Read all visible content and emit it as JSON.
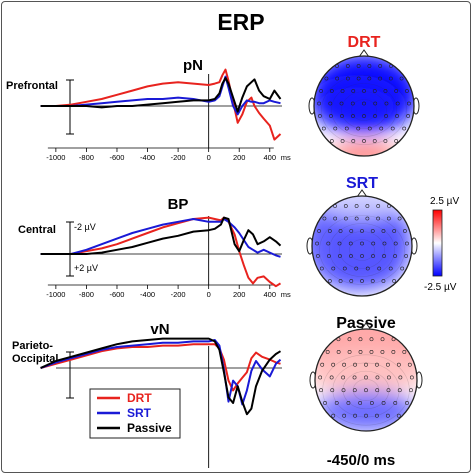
{
  "figure": {
    "title": "ERP",
    "time_window": "-450/0 ms",
    "colorbar": {
      "max_label": "2.5 µV",
      "min_label": "-2.5 µV",
      "colors": [
        "#0000ff",
        "#ffffff",
        "#ff0000"
      ]
    }
  },
  "legend": [
    {
      "label": "DRT",
      "color": "#e8231e"
    },
    {
      "label": "SRT",
      "color": "#1a1ad6"
    },
    {
      "label": "Passive",
      "color": "#000000"
    }
  ],
  "chart_data": [
    {
      "type": "line",
      "title": "pN",
      "ylabel": "Prefrontal",
      "x_unit": "ms",
      "x_ticks": [
        "-1000",
        "-800",
        "-600",
        "-400",
        "-200",
        "0",
        "200",
        "400"
      ],
      "xlim": [
        -1130,
        480
      ],
      "ylim": [
        -3.3,
        3.3
      ],
      "series": [
        {
          "name": "DRT",
          "color": "#e8231e",
          "x": [
            -1100,
            -1000,
            -900,
            -800,
            -700,
            -600,
            -500,
            -400,
            -300,
            -200,
            -100,
            0,
            40,
            70,
            90,
            110,
            130,
            160,
            190,
            220,
            250,
            280,
            300,
            330,
            360,
            400,
            430,
            470
          ],
          "y": [
            0,
            0,
            0.1,
            0.3,
            0.5,
            0.8,
            1.1,
            1.4,
            1.6,
            1.7,
            1.6,
            1.5,
            1.6,
            1.7,
            2.2,
            2.6,
            1.8,
            0.3,
            -1.2,
            -0.6,
            0.3,
            0.6,
            0,
            -0.5,
            -0.9,
            -1.4,
            -2.4,
            -2.0
          ]
        },
        {
          "name": "SRT",
          "color": "#1a1ad6",
          "x": [
            -1100,
            -1000,
            -900,
            -800,
            -700,
            -600,
            -500,
            -400,
            -300,
            -200,
            -100,
            0,
            40,
            70,
            90,
            110,
            130,
            160,
            190,
            220,
            250,
            280,
            300,
            330,
            360,
            400,
            430,
            470
          ],
          "y": [
            0,
            0,
            0,
            0.1,
            0.2,
            0.3,
            0.4,
            0.5,
            0.5,
            0.6,
            0.5,
            0.3,
            0.4,
            0.7,
            1.4,
            2.1,
            1.3,
            0,
            -0.6,
            0,
            0.4,
            0.3,
            0.3,
            0.2,
            0.2,
            0.4,
            0.3,
            0.2
          ]
        },
        {
          "name": "Passive",
          "color": "#000000",
          "x": [
            -1100,
            -1000,
            -900,
            -800,
            -700,
            -600,
            -500,
            -400,
            -300,
            -200,
            -100,
            0,
            40,
            70,
            90,
            110,
            130,
            160,
            190,
            220,
            250,
            280,
            300,
            330,
            360,
            400,
            430,
            470
          ],
          "y": [
            0,
            0,
            0,
            0,
            -0.1,
            0,
            0,
            0.1,
            0.2,
            0.3,
            0.4,
            0.4,
            0.5,
            0.9,
            1.6,
            2.0,
            1.6,
            0.6,
            -0.4,
            0.6,
            1.4,
            1.7,
            1.9,
            1.1,
            0.7,
            0.5,
            1.1,
            0.5
          ]
        }
      ]
    },
    {
      "type": "line",
      "title": "BP",
      "ylabel": "Central",
      "y_ticks": [
        "-2 µV",
        "+2 µV"
      ],
      "x_unit": "ms",
      "x_ticks": [
        "-1000",
        "-800",
        "-600",
        "-400",
        "-200",
        "0",
        "200",
        "400"
      ],
      "xlim": [
        -1130,
        480
      ],
      "ylim": [
        -3.3,
        3.3
      ],
      "series": [
        {
          "name": "DRT",
          "color": "#e8231e",
          "x": [
            -1100,
            -1000,
            -900,
            -800,
            -700,
            -600,
            -500,
            -400,
            -300,
            -200,
            -100,
            0,
            40,
            80,
            100,
            130,
            170,
            200,
            230,
            260,
            290,
            320,
            360,
            400,
            440,
            470
          ],
          "y": [
            0,
            0,
            0,
            0.2,
            0.4,
            0.7,
            1.1,
            1.5,
            1.9,
            2.2,
            2.5,
            2.6,
            2.5,
            2.4,
            2.6,
            2.3,
            1.4,
            0.2,
            -0.8,
            -1.7,
            -2.1,
            -1.7,
            -1.6,
            -2.0,
            -2.3,
            -2.1
          ]
        },
        {
          "name": "SRT",
          "color": "#1a1ad6",
          "x": [
            -1100,
            -1000,
            -900,
            -800,
            -700,
            -600,
            -500,
            -400,
            -300,
            -200,
            -100,
            0,
            40,
            80,
            100,
            130,
            170,
            200,
            230,
            260,
            290,
            320,
            360,
            400,
            440,
            470
          ],
          "y": [
            0,
            0,
            0,
            0.3,
            0.7,
            1.1,
            1.5,
            1.8,
            2.1,
            2.3,
            2.5,
            2.3,
            2.3,
            2.3,
            2.5,
            2.3,
            1.9,
            1.5,
            1.0,
            0.5,
            0.3,
            0.1,
            0.3,
            0.1,
            -0.1,
            -0.2
          ]
        },
        {
          "name": "Passive",
          "color": "#000000",
          "x": [
            -1100,
            -1000,
            -900,
            -800,
            -700,
            -600,
            -500,
            -400,
            -300,
            -200,
            -100,
            0,
            40,
            80,
            100,
            130,
            170,
            200,
            230,
            260,
            290,
            320,
            360,
            400,
            440,
            470
          ],
          "y": [
            0,
            0,
            0,
            0,
            0.1,
            0.3,
            0.5,
            0.8,
            1.1,
            1.3,
            1.6,
            1.7,
            1.8,
            2.1,
            2.6,
            2.5,
            0.7,
            0.2,
            1.0,
            1.7,
            1.4,
            0.7,
            0.9,
            1.2,
            0.9,
            0.6
          ]
        }
      ]
    },
    {
      "type": "line",
      "title": "vN",
      "ylabel": "Parieto-\nOccipital",
      "x_unit": "ms",
      "x_ticks": [
        "-1000",
        "-800",
        "-600",
        "-400",
        "-200",
        "0",
        "200",
        "400"
      ],
      "xlim": [
        -1130,
        480
      ],
      "ylim": [
        -3.3,
        3.3
      ],
      "series": [
        {
          "name": "DRT",
          "color": "#e8231e",
          "x": [
            -1100,
            -1000,
            -900,
            -800,
            -700,
            -600,
            -500,
            -400,
            -300,
            -200,
            -100,
            0,
            40,
            70,
            100,
            130,
            160,
            190,
            220,
            250,
            280,
            310,
            350,
            400,
            440,
            470
          ],
          "y": [
            0,
            0.3,
            0.6,
            0.9,
            1.2,
            1.4,
            1.5,
            1.5,
            1.6,
            1.6,
            1.7,
            1.7,
            1.7,
            1.4,
            0.6,
            -0.9,
            -1.6,
            -1.1,
            -0.7,
            -0.3,
            0.7,
            1.1,
            0.8,
            0.6,
            0.4,
            0.3
          ]
        },
        {
          "name": "SRT",
          "color": "#1a1ad6",
          "x": [
            -1100,
            -1000,
            -900,
            -800,
            -700,
            -600,
            -500,
            -400,
            -300,
            -200,
            -100,
            0,
            40,
            70,
            100,
            130,
            160,
            190,
            220,
            250,
            280,
            310,
            350,
            400,
            440,
            470
          ],
          "y": [
            0,
            0.4,
            0.7,
            1.0,
            1.3,
            1.5,
            1.6,
            1.7,
            1.8,
            1.8,
            1.9,
            1.9,
            2.0,
            1.6,
            -0.1,
            -2.4,
            -0.9,
            -1.3,
            -2.6,
            -1.6,
            -0.2,
            0.5,
            -0.1,
            -0.6,
            0.3,
            0.6
          ]
        },
        {
          "name": "Passive",
          "color": "#000000",
          "x": [
            -1100,
            -1000,
            -900,
            -800,
            -700,
            -600,
            -500,
            -400,
            -300,
            -200,
            -100,
            0,
            40,
            70,
            100,
            130,
            160,
            190,
            220,
            250,
            280,
            310,
            350,
            400,
            440,
            470
          ],
          "y": [
            0,
            0.5,
            0.8,
            1.1,
            1.4,
            1.7,
            1.9,
            2.0,
            2.1,
            2.1,
            2.1,
            2.1,
            1.9,
            1.3,
            -0.3,
            -2.1,
            -2.5,
            -1.3,
            -2.4,
            -3.3,
            -2.9,
            -1.3,
            -0.2,
            0.6,
            1.0,
            1.2
          ]
        }
      ]
    },
    {
      "type": "heatmap",
      "title": "DRT",
      "title_color": "#e8231e",
      "clim": [
        -2.5,
        2.5
      ],
      "blobs": [
        {
          "value": -2.5,
          "cx": 0.5,
          "cy": 0.38,
          "rx": 0.55,
          "ry": 0.4
        },
        {
          "value": -2.3,
          "cx": 0.42,
          "cy": 0.5,
          "rx": 0.45,
          "ry": 0.25
        },
        {
          "value": 1.2,
          "cx": 0.5,
          "cy": 0.98,
          "rx": 0.35,
          "ry": 0.12
        }
      ]
    },
    {
      "type": "heatmap",
      "title": "SRT",
      "title_color": "#1a1ad6",
      "clim": [
        -2.5,
        2.5
      ],
      "blobs": [
        {
          "value": -2.5,
          "cx": 0.55,
          "cy": 0.55,
          "rx": 0.42,
          "ry": 0.38
        },
        {
          "value": -1.6,
          "cx": 0.45,
          "cy": 0.45,
          "rx": 0.55,
          "ry": 0.5
        },
        {
          "value": -0.5,
          "cx": 0.5,
          "cy": 0.08,
          "rx": 0.4,
          "ry": 0.15
        }
      ]
    },
    {
      "type": "heatmap",
      "title": "Passive",
      "title_color": "#000000",
      "clim": [
        -2.5,
        2.5
      ],
      "blobs": [
        {
          "value": 0.9,
          "cx": 0.5,
          "cy": 0.18,
          "rx": 0.6,
          "ry": 0.35
        },
        {
          "value": 0.6,
          "cx": 0.5,
          "cy": 0.42,
          "rx": 0.6,
          "ry": 0.22
        },
        {
          "value": -2.5,
          "cx": 0.55,
          "cy": 0.86,
          "rx": 0.32,
          "ry": 0.12
        },
        {
          "value": -1.4,
          "cx": 0.5,
          "cy": 0.8,
          "rx": 0.5,
          "ry": 0.2
        }
      ]
    }
  ]
}
